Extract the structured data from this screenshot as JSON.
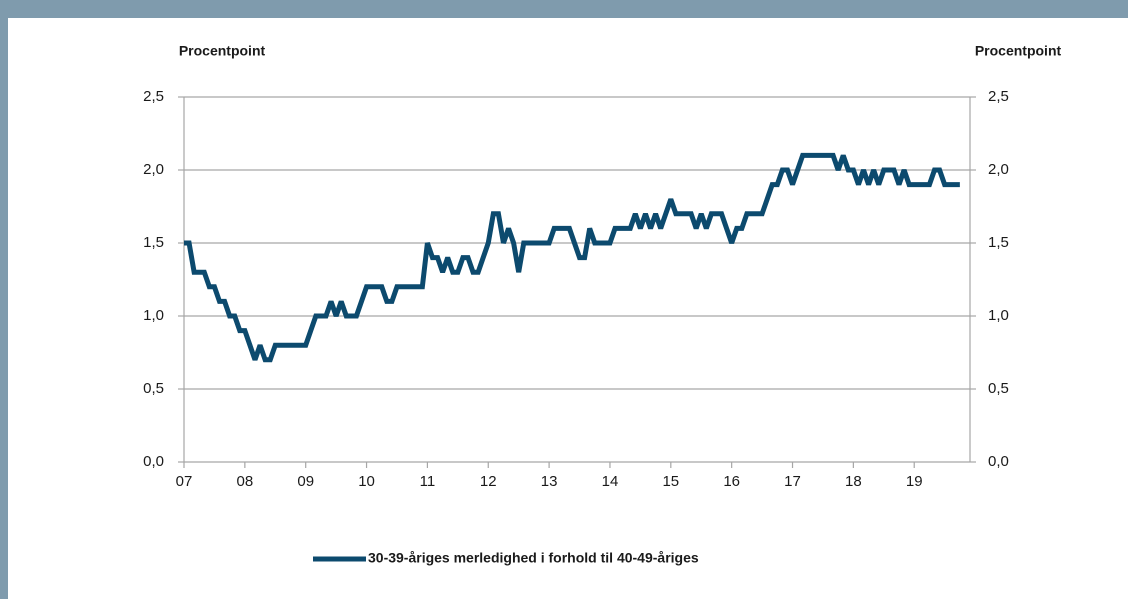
{
  "chart_data": {
    "type": "line",
    "y_label": "Procentpoint",
    "y2_label": "Procentpoint",
    "categories": [
      "07",
      null,
      null,
      null,
      null,
      null,
      null,
      null,
      null,
      null,
      null,
      null,
      "08",
      null,
      null,
      null,
      null,
      null,
      null,
      null,
      null,
      null,
      null,
      null,
      "09",
      null,
      null,
      null,
      null,
      null,
      null,
      null,
      null,
      null,
      null,
      null,
      "10",
      null,
      null,
      null,
      null,
      null,
      null,
      null,
      null,
      null,
      null,
      null,
      "11",
      null,
      null,
      null,
      null,
      null,
      null,
      null,
      null,
      null,
      null,
      null,
      "12",
      null,
      null,
      null,
      null,
      null,
      null,
      null,
      null,
      null,
      null,
      null,
      "13",
      null,
      null,
      null,
      null,
      null,
      null,
      null,
      null,
      null,
      null,
      null,
      "14",
      null,
      null,
      null,
      null,
      null,
      null,
      null,
      null,
      null,
      null,
      null,
      "15",
      null,
      null,
      null,
      null,
      null,
      null,
      null,
      null,
      null,
      null,
      null,
      "16",
      null,
      null,
      null,
      null,
      null,
      null,
      null,
      null,
      null,
      null,
      null,
      "17",
      null,
      null,
      null,
      null,
      null,
      null,
      null,
      null,
      null,
      null,
      null,
      "18",
      null,
      null,
      null,
      null,
      null,
      null,
      null,
      null,
      null,
      null,
      null,
      "19",
      null,
      null,
      null,
      null,
      null,
      null,
      null,
      null,
      null
    ],
    "series": [
      {
        "name": "30-39-åriges merledighed i forhold til 40-49-åriges",
        "color": "#0c4a6e",
        "values": [
          1.5,
          1.5,
          1.3,
          1.3,
          1.3,
          1.2,
          1.2,
          1.1,
          1.1,
          1.0,
          1.0,
          0.9,
          0.9,
          0.8,
          0.7,
          0.8,
          0.7,
          0.7,
          0.8,
          0.8,
          0.8,
          0.8,
          0.8,
          0.8,
          0.8,
          0.9,
          1.0,
          1.0,
          1.0,
          1.1,
          1.0,
          1.1,
          1.0,
          1.0,
          1.0,
          1.1,
          1.2,
          1.2,
          1.2,
          1.2,
          1.1,
          1.1,
          1.2,
          1.2,
          1.2,
          1.2,
          1.2,
          1.2,
          1.5,
          1.4,
          1.4,
          1.3,
          1.4,
          1.3,
          1.3,
          1.4,
          1.4,
          1.3,
          1.3,
          1.4,
          1.5,
          1.7,
          1.7,
          1.5,
          1.6,
          1.5,
          1.3,
          1.5,
          1.5,
          1.5,
          1.5,
          1.5,
          1.5,
          1.6,
          1.6,
          1.6,
          1.6,
          1.5,
          1.4,
          1.4,
          1.6,
          1.5,
          1.5,
          1.5,
          1.5,
          1.6,
          1.6,
          1.6,
          1.6,
          1.7,
          1.6,
          1.7,
          1.6,
          1.7,
          1.6,
          1.7,
          1.8,
          1.7,
          1.7,
          1.7,
          1.7,
          1.6,
          1.7,
          1.6,
          1.7,
          1.7,
          1.7,
          1.6,
          1.5,
          1.6,
          1.6,
          1.7,
          1.7,
          1.7,
          1.7,
          1.8,
          1.9,
          1.9,
          2.0,
          2.0,
          1.9,
          2.0,
          2.1,
          2.1,
          2.1,
          2.1,
          2.1,
          2.1,
          2.1,
          2.0,
          2.1,
          2.0,
          2.0,
          1.9,
          2.0,
          1.9,
          2.0,
          1.9,
          2.0,
          2.0,
          2.0,
          1.9,
          2.0,
          1.9,
          1.9,
          1.9,
          1.9,
          1.9,
          2.0,
          2.0,
          1.9,
          1.9,
          1.9,
          1.9
        ]
      }
    ],
    "ylim": [
      0,
      2.5
    ],
    "yticks": [
      {
        "value": 0,
        "label": "0,0"
      },
      {
        "value": 0.5,
        "label": "0,5"
      },
      {
        "value": 1,
        "label": "1,0"
      },
      {
        "value": 1.5,
        "label": "1,5"
      },
      {
        "value": 2,
        "label": "2,0"
      },
      {
        "value": 2.5,
        "label": "2,5"
      }
    ],
    "y2lim": [
      0,
      2.5
    ],
    "y2ticks": [
      {
        "value": 0,
        "label": "0,0"
      },
      {
        "value": 0.5,
        "label": "0,5"
      },
      {
        "value": 1,
        "label": "1,0"
      },
      {
        "value": 1.5,
        "label": "1,5"
      },
      {
        "value": 2,
        "label": "2,0"
      },
      {
        "value": 2.5,
        "label": "2,5"
      }
    ],
    "grid": true,
    "legend": "bottom"
  }
}
